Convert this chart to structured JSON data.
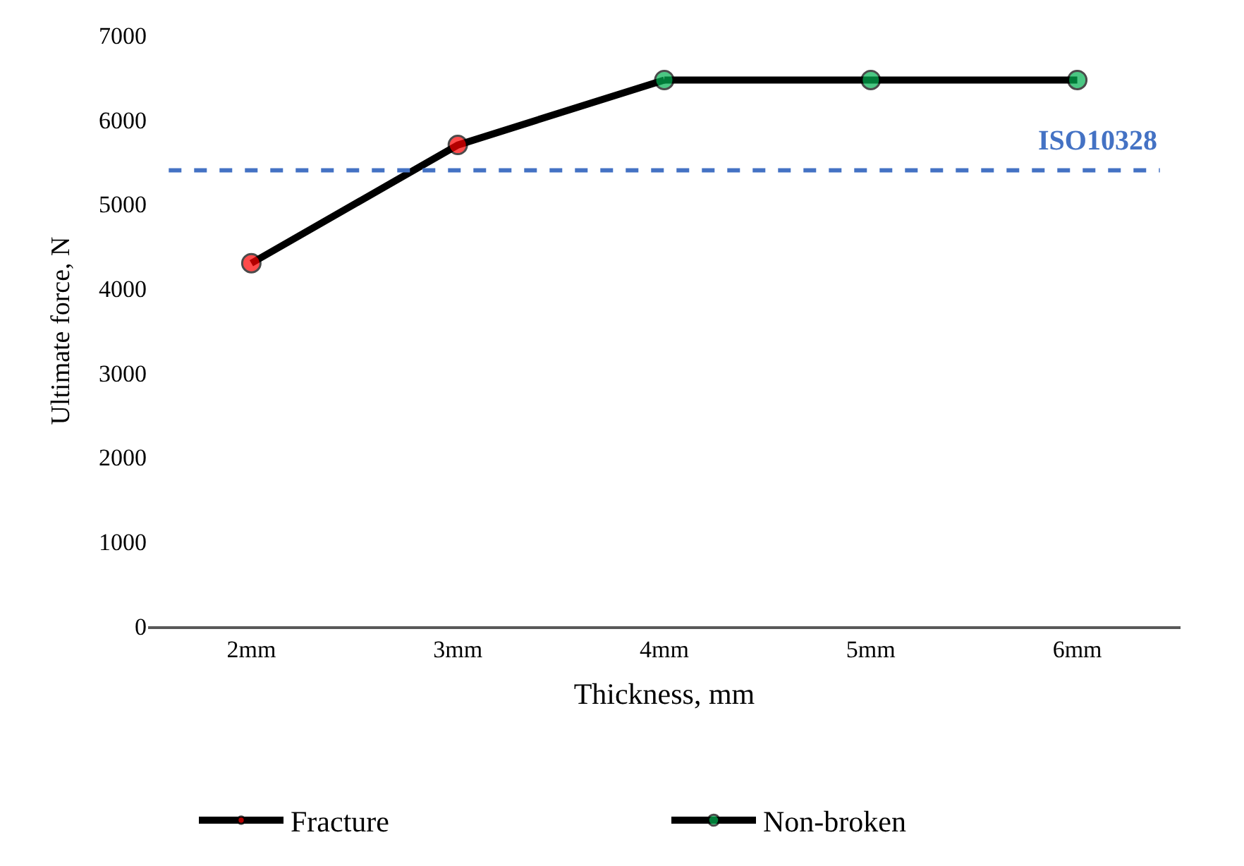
{
  "chart_data": {
    "type": "line",
    "xlabel": "Thickness, mm",
    "ylabel": "Ultimate force, N",
    "categories": [
      "2mm",
      "3mm",
      "4mm",
      "5mm",
      "6mm"
    ],
    "series": [
      {
        "name": "Fracture",
        "color": "#000000",
        "colors": [
          "#ff0000",
          "#ff0000",
          null,
          null,
          null
        ],
        "values": [
          4300,
          5700,
          6470,
          null,
          null
        ]
      },
      {
        "name": "Non-broken",
        "color": "#000000",
        "colors": [
          null,
          null,
          "#00b050",
          "#00b050",
          "#00b050"
        ],
        "values": [
          null,
          null,
          6470,
          6470,
          6470
        ]
      }
    ],
    "ylim": [
      0,
      7000
    ],
    "yticks": [
      0,
      1000,
      2000,
      3000,
      4000,
      5000,
      6000,
      7000
    ],
    "ref_lines": [
      {
        "axis": "y",
        "value": 5400,
        "label": "ISO10328",
        "color": "#4472c4",
        "line_style": "dashed"
      }
    ],
    "grid": false,
    "legend": "bottom",
    "marker": "circle",
    "line_style": "solid"
  }
}
